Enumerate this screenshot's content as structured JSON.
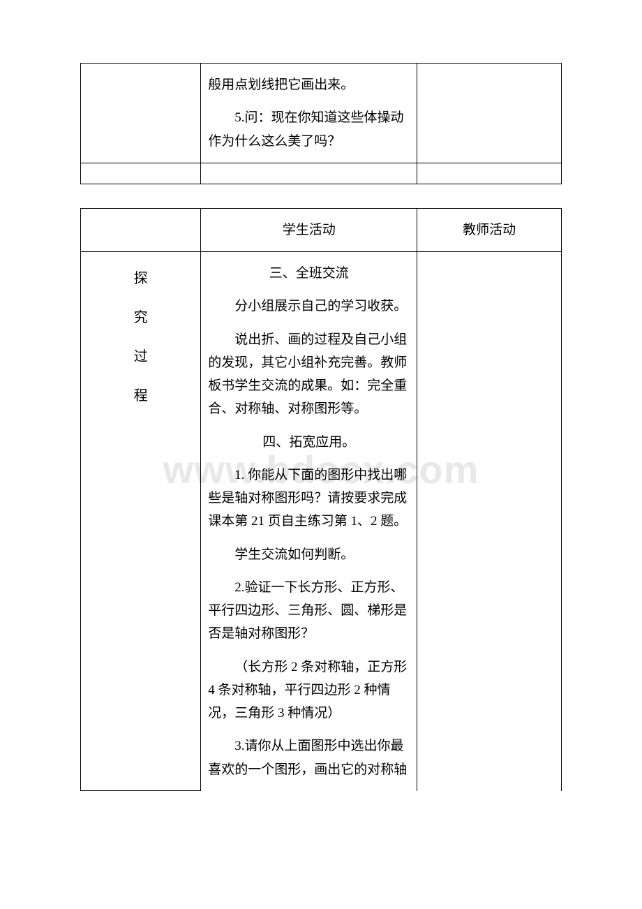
{
  "watermark": "www.bdocx.com",
  "table1": {
    "row1": {
      "mid": {
        "p1": "般用点划线把它画出来。",
        "p2": "5.问：现在你知道这些体操动作为什么这么美了吗？"
      }
    }
  },
  "table2": {
    "header": {
      "mid": "学生活动",
      "right": "教师活动"
    },
    "body": {
      "left_label": {
        "c1": "探",
        "c2": "究",
        "c3": "过",
        "c4": "程"
      },
      "mid": {
        "h1": "三、全班交流",
        "p1": "分小组展示自己的学习收获。",
        "p2": "说出折、画的过程及自己小组的发现，其它小组补充完善。教师板书学生交流的成果。如：完全重合、对称轴、对称图形等。",
        "h2": "四、拓宽应用。",
        "p3": "1. 你能从下面的图形中找出哪些是轴对称图形吗？请按要求完成课本第 21 页自主练习第 1、2 题。",
        "p4": "学生交流如何判断。",
        "p5": "2.验证一下长方形、正方形、平行四边形、三角形、圆、梯形是否是轴对称图形？",
        "p6": "（长方形 2 条对称轴，正方形 4 条对称轴，平行四边形 2 种情况，三角形 3 种情况）",
        "p7": "3.请你从上面图形中选出你最喜欢的一个图形，画出它的对称轴"
      }
    }
  }
}
